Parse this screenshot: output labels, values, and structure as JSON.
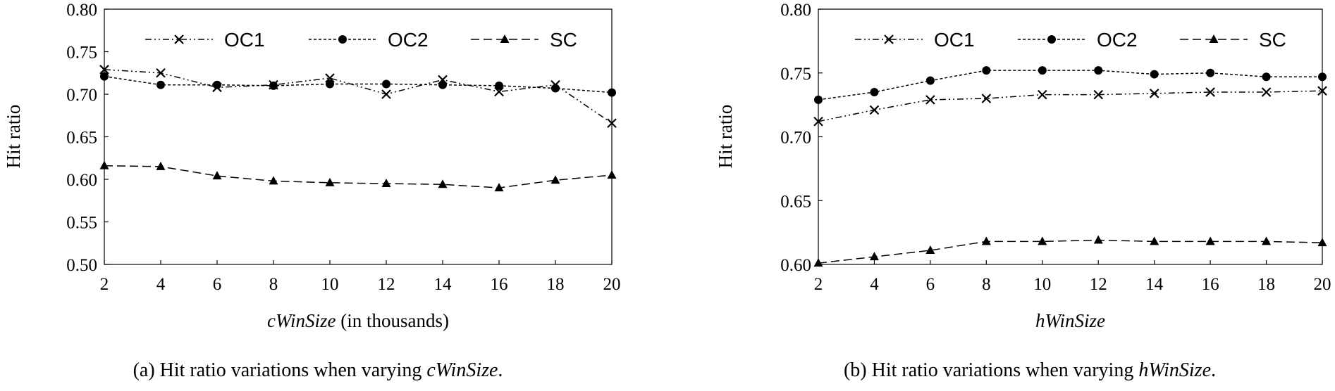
{
  "chart_data": [
    {
      "type": "line",
      "panel": "a",
      "caption": {
        "prefix": "(a) Hit ratio variations when varying ",
        "var": "cWinSize",
        "suffix": "."
      },
      "xlabel": {
        "var": "cWinSize",
        "rest": " (in thousands)"
      },
      "ylabel": "Hit ratio",
      "x": [
        2,
        4,
        6,
        8,
        10,
        12,
        14,
        16,
        18,
        20
      ],
      "x_ticks": [
        "2",
        "4",
        "6",
        "8",
        "10",
        "12",
        "14",
        "16",
        "18",
        "20"
      ],
      "ylim": [
        0.5,
        0.8
      ],
      "y_ticks": [
        0.5,
        0.55,
        0.6,
        0.65,
        0.7,
        0.75,
        0.8
      ],
      "y_tick_labels": [
        "0.50",
        "0.55",
        "0.60",
        "0.65",
        "0.70",
        "0.75",
        "0.80"
      ],
      "legend_position": "top",
      "series": [
        {
          "name": "OC1",
          "marker": "x",
          "dash": "dash-dot-dot",
          "values": [
            0.729,
            0.725,
            0.708,
            0.711,
            0.719,
            0.7,
            0.717,
            0.703,
            0.711,
            0.666
          ]
        },
        {
          "name": "OC2",
          "marker": "circle",
          "dash": "short-dash",
          "values": [
            0.721,
            0.711,
            0.711,
            0.71,
            0.712,
            0.712,
            0.711,
            0.71,
            0.707,
            0.702
          ]
        },
        {
          "name": "SC",
          "marker": "triangle",
          "dash": "long-dash",
          "values": [
            0.616,
            0.615,
            0.604,
            0.598,
            0.596,
            0.595,
            0.594,
            0.59,
            0.599,
            0.605
          ]
        }
      ]
    },
    {
      "type": "line",
      "panel": "b",
      "caption": {
        "prefix": "(b) Hit ratio variations when varying ",
        "var": "hWinSize",
        "suffix": "."
      },
      "xlabel": {
        "var": "hWinSize",
        "rest": ""
      },
      "ylabel": "Hit ratio",
      "x": [
        2,
        4,
        6,
        8,
        10,
        12,
        14,
        16,
        18,
        20
      ],
      "x_ticks": [
        "2",
        "4",
        "6",
        "8",
        "10",
        "12",
        "14",
        "16",
        "18",
        "20"
      ],
      "ylim": [
        0.6,
        0.8
      ],
      "y_ticks": [
        0.6,
        0.65,
        0.7,
        0.75,
        0.8
      ],
      "y_tick_labels": [
        "0.60",
        "0.65",
        "0.70",
        "0.75",
        "0.80"
      ],
      "legend_position": "top",
      "series": [
        {
          "name": "OC1",
          "marker": "x",
          "dash": "dash-dot-dot",
          "values": [
            0.712,
            0.721,
            0.729,
            0.73,
            0.733,
            0.733,
            0.734,
            0.735,
            0.735,
            0.736
          ]
        },
        {
          "name": "OC2",
          "marker": "circle",
          "dash": "short-dash",
          "values": [
            0.729,
            0.735,
            0.744,
            0.752,
            0.752,
            0.752,
            0.749,
            0.75,
            0.747,
            0.747
          ]
        },
        {
          "name": "SC",
          "marker": "triangle",
          "dash": "long-dash",
          "values": [
            0.601,
            0.606,
            0.611,
            0.618,
            0.618,
            0.619,
            0.618,
            0.618,
            0.618,
            0.617
          ]
        }
      ]
    }
  ]
}
